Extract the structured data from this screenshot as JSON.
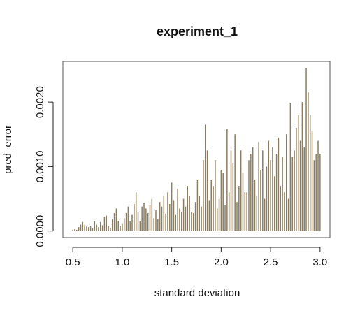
{
  "chart_data": {
    "type": "bar",
    "title": "experiment_1",
    "x_label": "standard deviation",
    "y_label": "pred_error",
    "color": "#8b7d5e",
    "x": [
      0.5,
      0.52,
      0.54,
      0.56,
      0.58,
      0.6,
      0.62,
      0.64,
      0.66,
      0.68,
      0.7,
      0.72,
      0.74,
      0.76,
      0.78,
      0.8,
      0.82,
      0.84,
      0.86,
      0.88,
      0.9,
      0.92,
      0.94,
      0.96,
      0.98,
      1.0,
      1.02,
      1.04,
      1.06,
      1.08,
      1.1,
      1.12,
      1.14,
      1.16,
      1.18,
      1.2,
      1.22,
      1.24,
      1.26,
      1.28,
      1.3,
      1.32,
      1.34,
      1.36,
      1.38,
      1.4,
      1.42,
      1.44,
      1.46,
      1.48,
      1.5,
      1.52,
      1.54,
      1.56,
      1.58,
      1.6,
      1.62,
      1.64,
      1.66,
      1.68,
      1.7,
      1.72,
      1.74,
      1.76,
      1.78,
      1.8,
      1.82,
      1.84,
      1.86,
      1.88,
      1.9,
      1.92,
      1.94,
      1.96,
      1.98,
      2.0,
      2.02,
      2.04,
      2.06,
      2.08,
      2.1,
      2.12,
      2.14,
      2.16,
      2.18,
      2.2,
      2.22,
      2.24,
      2.26,
      2.28,
      2.3,
      2.32,
      2.34,
      2.36,
      2.38,
      2.4,
      2.42,
      2.44,
      2.46,
      2.48,
      2.5,
      2.52,
      2.54,
      2.56,
      2.58,
      2.6,
      2.62,
      2.64,
      2.66,
      2.68,
      2.7,
      2.72,
      2.74,
      2.76,
      2.78,
      2.8,
      2.82,
      2.84,
      2.86,
      2.88,
      2.9,
      2.92,
      2.94,
      2.96,
      2.98,
      3.0
    ],
    "values": [
      2e-05,
      3e-05,
      2e-05,
      6e-05,
      0.0001,
      0.00014,
      9e-05,
      7e-05,
      6e-05,
      8e-05,
      4e-05,
      0.00015,
      0.0001,
      6e-05,
      0.00014,
      9e-05,
      0.00022,
      0.00024,
      8e-05,
      5e-05,
      0.00018,
      0.00028,
      0.00035,
      0.00016,
      8e-05,
      0.00012,
      0.0002,
      0.00028,
      0.00038,
      0.00015,
      0.00025,
      0.00042,
      0.0006,
      0.0003,
      0.00015,
      0.00038,
      0.00044,
      0.00035,
      0.00028,
      0.0004,
      0.0005,
      0.0002,
      0.00032,
      0.00018,
      0.00045,
      0.00038,
      0.00055,
      0.00027,
      0.0006,
      0.00042,
      0.00075,
      0.00048,
      0.00025,
      0.00066,
      0.00035,
      0.0003,
      0.0005,
      0.00038,
      0.0007,
      0.00055,
      0.0003,
      0.00028,
      0.00045,
      0.0008,
      0.00055,
      0.00038,
      0.0011,
      0.00165,
      0.00125,
      0.00048,
      0.0008,
      0.0007,
      0.0011,
      0.00035,
      0.0005,
      0.00095,
      0.0009,
      0.0004,
      0.00158,
      0.0006,
      0.00125,
      0.00105,
      0.0015,
      0.00045,
      0.0007,
      0.00125,
      0.0009,
      0.0006,
      0.0006,
      0.0011,
      0.0012,
      0.0013,
      0.0008,
      0.00055,
      0.00138,
      0.00095,
      0.00125,
      0.0005,
      0.001,
      0.0014,
      0.0011,
      0.0013,
      0.00085,
      0.0012,
      0.00145,
      0.0007,
      0.00115,
      0.0006,
      0.0015,
      0.0005,
      0.00198,
      0.00115,
      0.00125,
      0.0016,
      0.0018,
      0.0014,
      0.002,
      0.0013,
      0.00253,
      0.00215,
      0.0018,
      0.00155,
      0.0011,
      0.0012,
      0.0014,
      0.0012
    ],
    "xlim": [
      0.4,
      3.1
    ],
    "ylim": [
      -0.000101,
      0.00263
    ],
    "xticks": [
      0.5,
      {
        "value": 1.0,
        "label": "1.0"
      },
      1.5,
      {
        "value": 2.0,
        "label": "2.0"
      },
      2.5,
      {
        "value": 3.0,
        "label": "3.0"
      }
    ],
    "yticks": [
      {
        "value": 0,
        "label": "0.0000"
      },
      {
        "value": 0.001,
        "label": "0.0010"
      },
      {
        "value": 0.002,
        "label": "0.0020"
      }
    ]
  }
}
